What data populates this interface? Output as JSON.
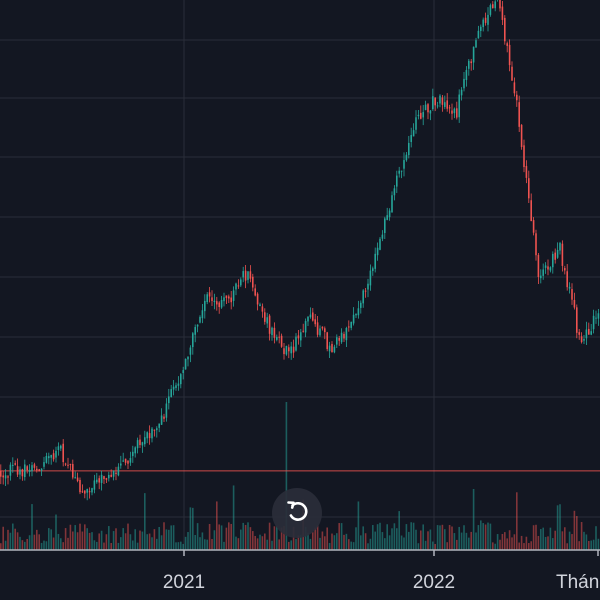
{
  "chart_data": {
    "type": "candlestick",
    "x_axis_labels": [
      "2021",
      "2022",
      "Thán"
    ],
    "date_range": [
      "2020-05",
      "2022-12"
    ],
    "price_range": [
      0,
      100
    ],
    "grid": true,
    "horizontal_reference_line": 20,
    "overlays": [
      "volume"
    ],
    "trend": [
      {
        "date": "2020-06",
        "price": 20
      },
      {
        "date": "2020-07",
        "price": 24
      },
      {
        "date": "2020-08",
        "price": 16
      },
      {
        "date": "2020-10",
        "price": 21
      },
      {
        "date": "2020-12",
        "price": 30
      },
      {
        "date": "2021-01",
        "price": 40
      },
      {
        "date": "2021-02",
        "price": 51
      },
      {
        "date": "2021-03",
        "price": 50
      },
      {
        "date": "2021-04",
        "price": 56
      },
      {
        "date": "2021-05",
        "price": 46
      },
      {
        "date": "2021-06",
        "price": 41
      },
      {
        "date": "2021-07",
        "price": 48
      },
      {
        "date": "2021-08",
        "price": 42
      },
      {
        "date": "2021-09",
        "price": 46
      },
      {
        "date": "2021-10",
        "price": 57
      },
      {
        "date": "2021-11",
        "price": 70
      },
      {
        "date": "2021-12",
        "price": 82
      },
      {
        "date": "2022-01",
        "price": 87
      },
      {
        "date": "2022-02",
        "price": 84
      },
      {
        "date": "2022-03",
        "price": 98
      },
      {
        "date": "2022-04",
        "price": 106
      },
      {
        "date": "2022-05",
        "price": 84
      },
      {
        "date": "2022-06",
        "price": 55
      },
      {
        "date": "2022-07",
        "price": 60
      },
      {
        "date": "2022-08",
        "price": 43
      },
      {
        "date": "2022-09",
        "price": 49
      },
      {
        "date": "2022-10",
        "price": 68
      },
      {
        "date": "2022-11",
        "price": 54
      }
    ]
  },
  "colors": {
    "background": "#131722",
    "grid": "#2a2e39",
    "up": "#26a69a",
    "down": "#ef5350",
    "reference_line": "#ef5350",
    "axis_text": "#d1d4dc"
  },
  "reset_button": {
    "icon": "reset-icon"
  }
}
